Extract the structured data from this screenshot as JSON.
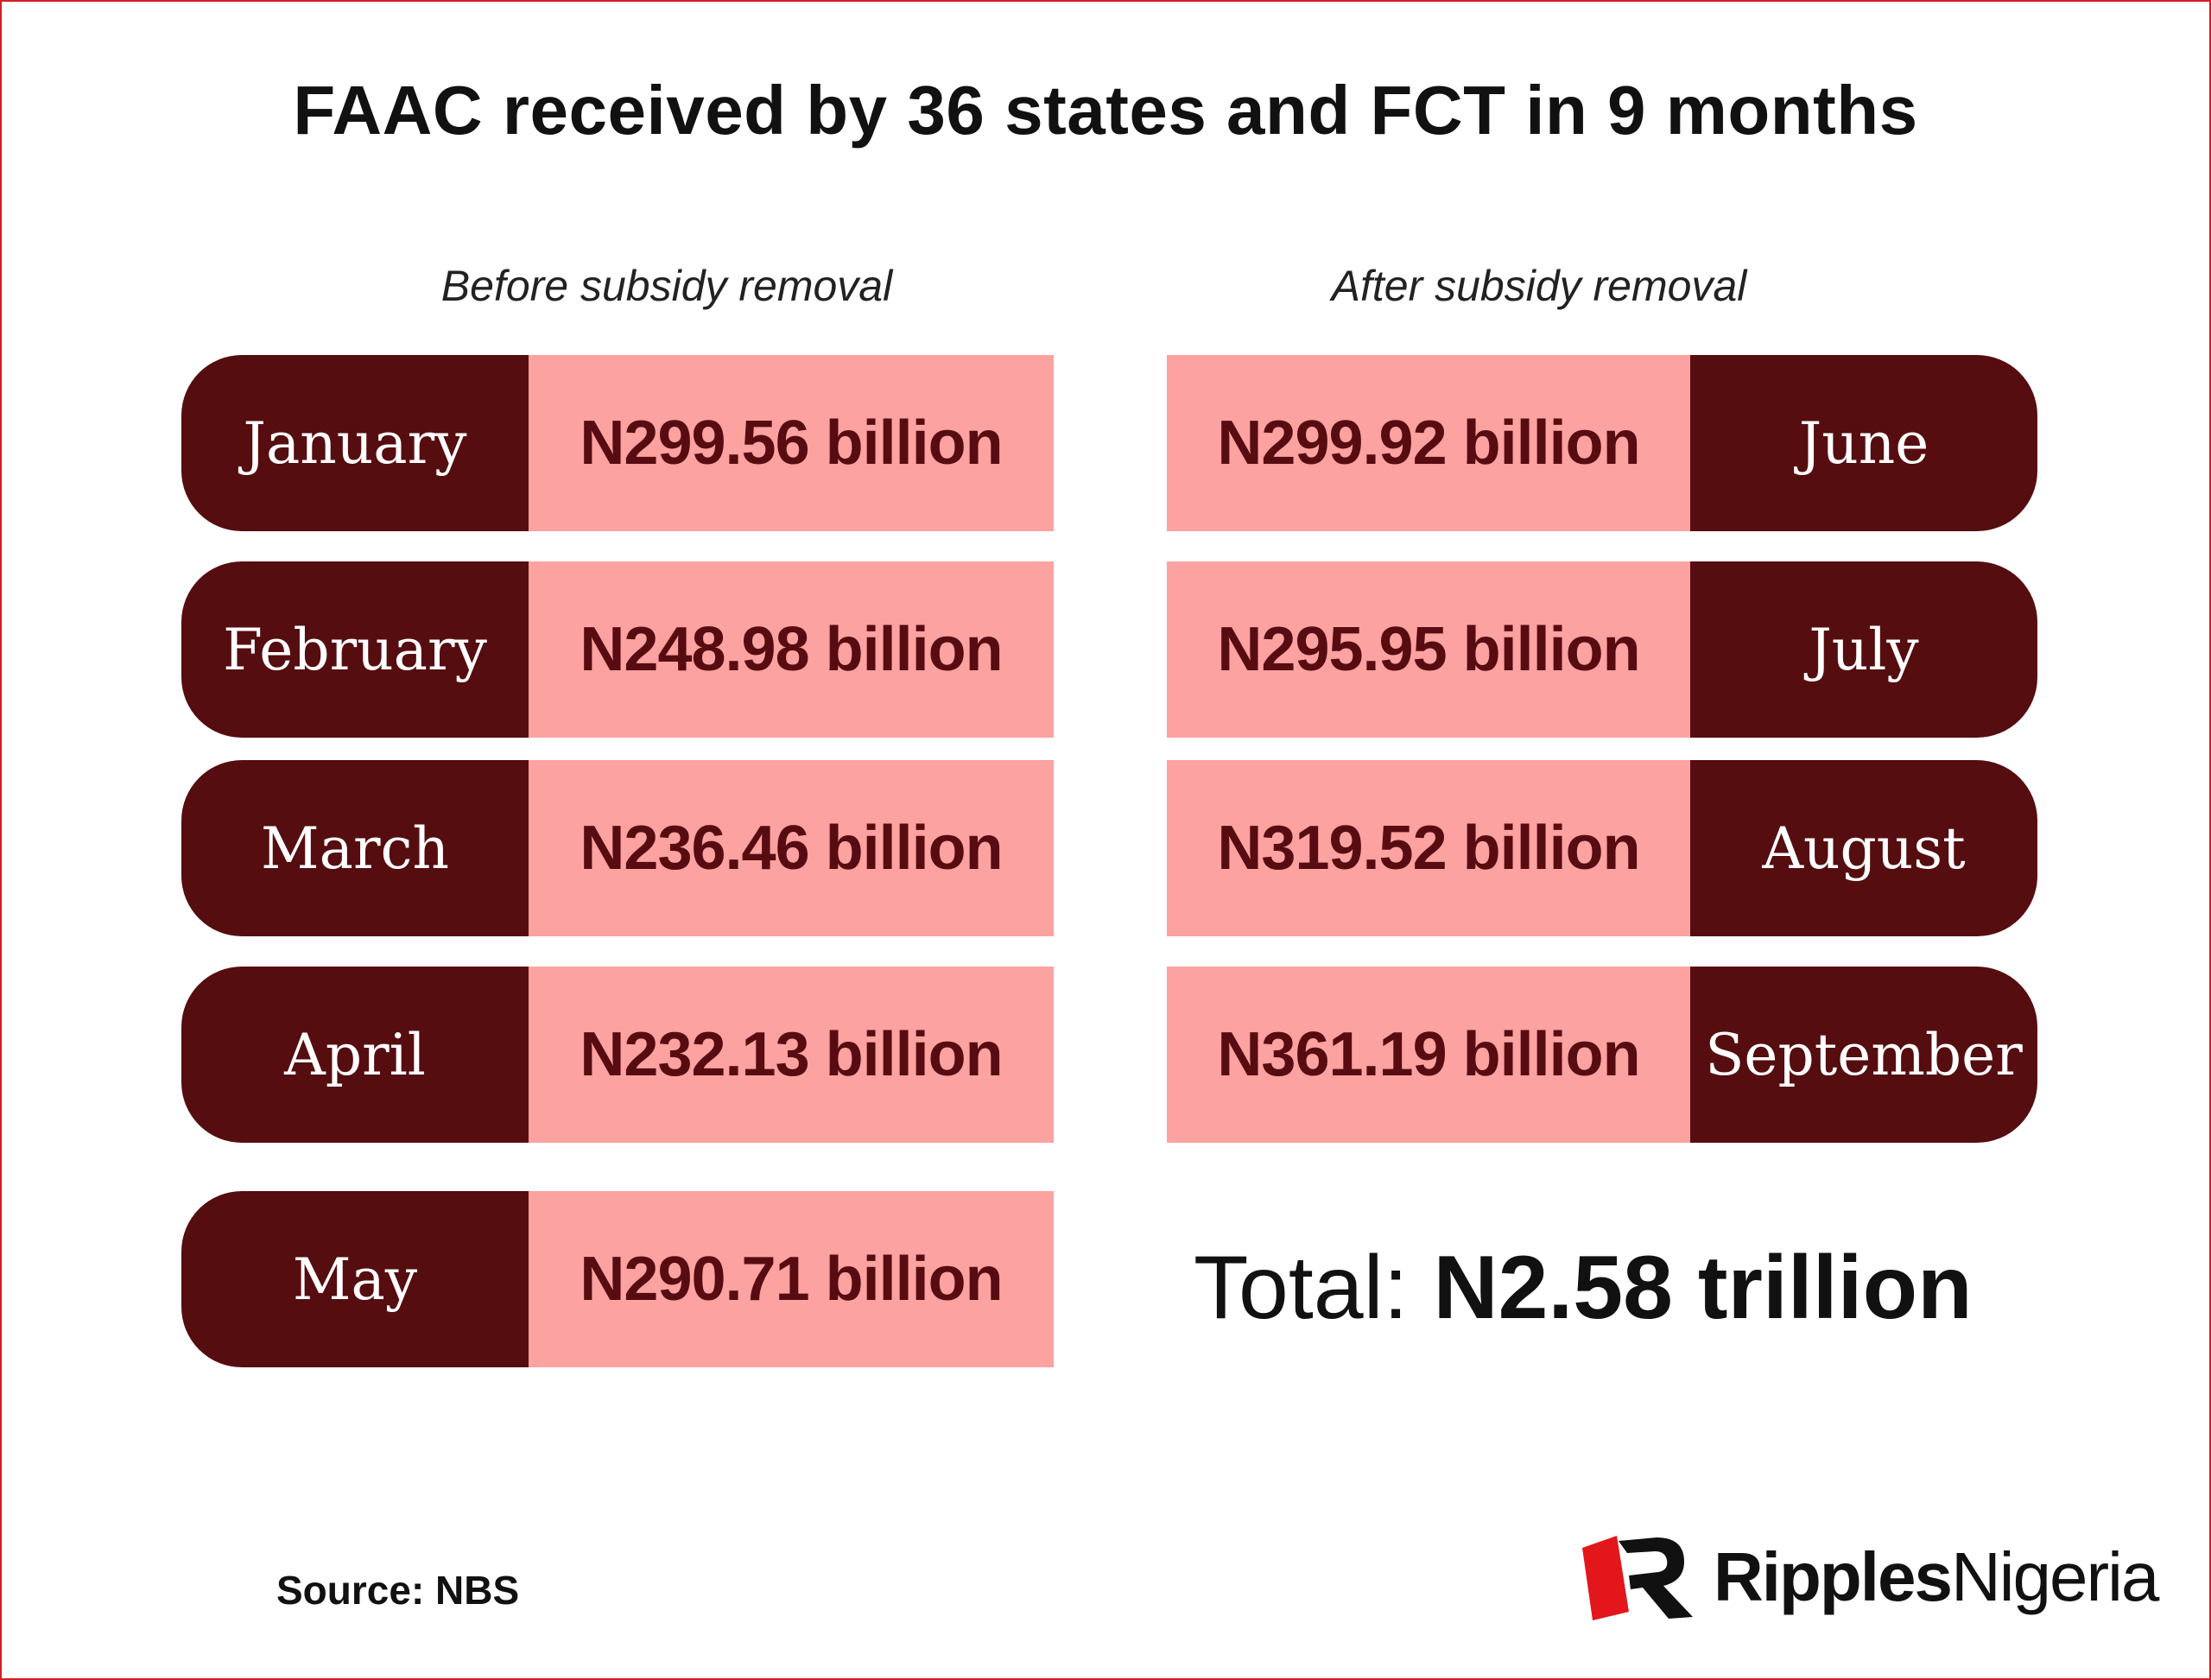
{
  "title": "FAAC received by 36 states and FCT in 9 months",
  "left_column": {
    "heading": "Before subsidy removal",
    "rows": [
      {
        "month": "January",
        "amount": "N299.56 billion"
      },
      {
        "month": "February",
        "amount": "N248.98 billion"
      },
      {
        "month": "March",
        "amount": "N236.46 billion"
      },
      {
        "month": "April",
        "amount": "N232.13 billion"
      },
      {
        "month": "May",
        "amount": "N290.71 billion"
      }
    ]
  },
  "right_column": {
    "heading": "After subsidy removal",
    "rows": [
      {
        "month": "June",
        "amount": "N299.92 billion"
      },
      {
        "month": "July",
        "amount": "N295.95 billion"
      },
      {
        "month": "August",
        "amount": "N319.52 billion"
      },
      {
        "month": "September",
        "amount": "N361.19 billion"
      }
    ]
  },
  "total": {
    "label": "Total: ",
    "value": "N2.58 trillion"
  },
  "source": "Source: NBS",
  "brand": {
    "name_bold": "Ripples",
    "name_regular": "Nigeria",
    "logo_icon": "ripples-r-logo-icon"
  },
  "colors": {
    "month_bg": "#560d10",
    "amount_bg": "#fca2a1",
    "border": "#d21f24",
    "logo_red": "#e3161c"
  }
}
